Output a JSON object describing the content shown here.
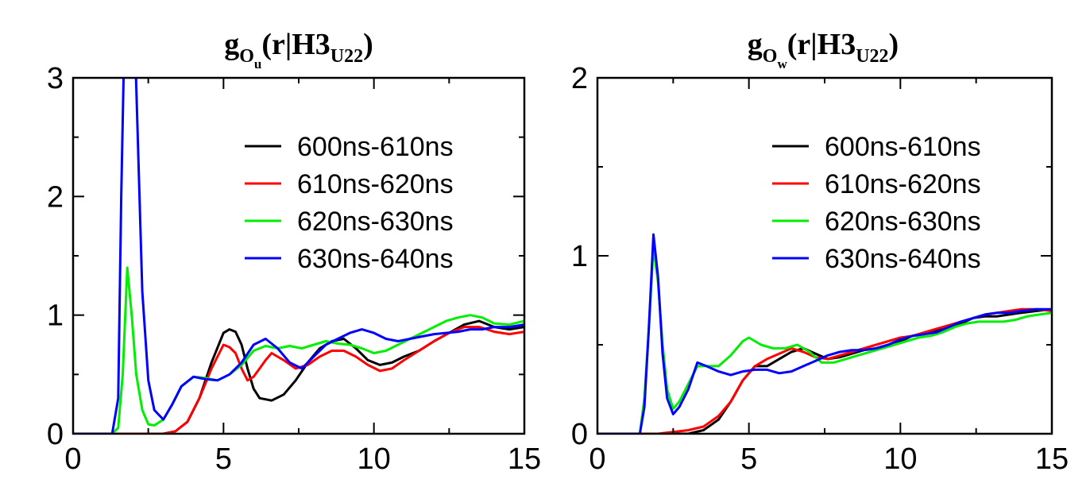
{
  "chart_data": [
    {
      "type": "line",
      "title": {
        "main": "g",
        "sub1": "O",
        "sub2": "u",
        "paren_open": "(r|H3",
        "sub3": "U22",
        "paren_close": ")"
      },
      "xlabel": "",
      "ylabel": "",
      "xlim": [
        0,
        15
      ],
      "ylim": [
        0,
        3
      ],
      "xticks": [
        0,
        5,
        10,
        15
      ],
      "yticks": [
        0,
        1,
        2,
        3
      ],
      "legend_position": "top-right",
      "series": [
        {
          "name": "600ns-610ns",
          "color": "#000000",
          "x": [
            0,
            1.4,
            2.0,
            3.0,
            3.4,
            3.8,
            4.2,
            4.6,
            5.0,
            5.2,
            5.4,
            5.6,
            5.8,
            6.0,
            6.2,
            6.6,
            7.0,
            7.4,
            7.8,
            8.2,
            8.6,
            9.0,
            9.4,
            9.8,
            10.2,
            10.6,
            11.0,
            11.5,
            12.0,
            12.5,
            13.0,
            13.5,
            14.0,
            14.5,
            15.0
          ],
          "y": [
            0,
            0,
            0,
            0,
            0.02,
            0.1,
            0.3,
            0.6,
            0.85,
            0.88,
            0.86,
            0.75,
            0.55,
            0.38,
            0.3,
            0.28,
            0.33,
            0.45,
            0.6,
            0.72,
            0.78,
            0.8,
            0.72,
            0.62,
            0.58,
            0.6,
            0.65,
            0.7,
            0.78,
            0.85,
            0.92,
            0.95,
            0.9,
            0.88,
            0.9
          ]
        },
        {
          "name": "610ns-620ns",
          "color": "#ff0000",
          "x": [
            0,
            1.4,
            2.0,
            3.0,
            3.4,
            3.8,
            4.2,
            4.6,
            5.0,
            5.2,
            5.4,
            5.6,
            5.8,
            6.0,
            6.2,
            6.4,
            6.6,
            7.0,
            7.4,
            7.8,
            8.2,
            8.6,
            9.0,
            9.4,
            9.8,
            10.2,
            10.6,
            11.0,
            11.5,
            12.0,
            12.5,
            13.0,
            13.5,
            14.0,
            14.5,
            15.0
          ],
          "y": [
            0,
            0,
            0,
            0,
            0.02,
            0.1,
            0.3,
            0.55,
            0.75,
            0.73,
            0.68,
            0.55,
            0.45,
            0.48,
            0.55,
            0.62,
            0.68,
            0.62,
            0.55,
            0.58,
            0.65,
            0.7,
            0.7,
            0.65,
            0.58,
            0.53,
            0.55,
            0.62,
            0.7,
            0.78,
            0.85,
            0.9,
            0.9,
            0.86,
            0.84,
            0.86
          ]
        },
        {
          "name": "620ns-630ns",
          "color": "#00ee00",
          "x": [
            0,
            1.3,
            1.5,
            1.65,
            1.8,
            1.95,
            2.1,
            2.3,
            2.5,
            2.7,
            3.0,
            3.3,
            3.6,
            4.0,
            4.4,
            4.8,
            5.2,
            5.6,
            6.0,
            6.4,
            6.8,
            7.2,
            7.6,
            8.0,
            8.4,
            8.8,
            9.2,
            9.6,
            10.0,
            10.4,
            10.8,
            11.2,
            11.6,
            12.0,
            12.4,
            12.8,
            13.2,
            13.6,
            14.0,
            14.5,
            15.0
          ],
          "y": [
            0,
            0,
            0.05,
            0.5,
            1.4,
            1.0,
            0.5,
            0.2,
            0.08,
            0.07,
            0.12,
            0.25,
            0.4,
            0.48,
            0.47,
            0.45,
            0.5,
            0.58,
            0.7,
            0.74,
            0.72,
            0.74,
            0.72,
            0.75,
            0.78,
            0.76,
            0.75,
            0.72,
            0.68,
            0.7,
            0.75,
            0.8,
            0.85,
            0.9,
            0.95,
            0.98,
            1.0,
            0.98,
            0.93,
            0.92,
            0.95
          ]
        },
        {
          "name": "630ns-640ns",
          "color": "#0000ff",
          "x": [
            0,
            1.3,
            1.5,
            1.6,
            1.7,
            1.85,
            2.0,
            2.15,
            2.3,
            2.5,
            2.7,
            3.0,
            3.3,
            3.6,
            4.0,
            4.4,
            4.8,
            5.2,
            5.6,
            6.0,
            6.4,
            6.8,
            7.2,
            7.6,
            8.0,
            8.4,
            8.8,
            9.2,
            9.6,
            10.0,
            10.4,
            10.8,
            11.2,
            11.6,
            12.0,
            12.4,
            12.8,
            13.2,
            13.6,
            14.0,
            14.5,
            15.0
          ],
          "y": [
            0,
            0,
            0.3,
            2.0,
            3.3,
            4.0,
            3.8,
            2.5,
            1.2,
            0.45,
            0.2,
            0.12,
            0.25,
            0.4,
            0.48,
            0.46,
            0.45,
            0.5,
            0.6,
            0.75,
            0.8,
            0.72,
            0.6,
            0.55,
            0.65,
            0.75,
            0.8,
            0.85,
            0.88,
            0.85,
            0.8,
            0.78,
            0.8,
            0.82,
            0.84,
            0.85,
            0.86,
            0.88,
            0.88,
            0.9,
            0.9,
            0.92
          ]
        }
      ]
    },
    {
      "type": "line",
      "title": {
        "main": "g",
        "sub1": "O",
        "sub2": "w",
        "paren_open": "(r|H3",
        "sub3": "U22",
        "paren_close": ")"
      },
      "xlabel": "",
      "ylabel": "",
      "xlim": [
        0,
        15
      ],
      "ylim": [
        0,
        2
      ],
      "xticks": [
        0,
        5,
        10,
        15
      ],
      "yticks": [
        0,
        1,
        2
      ],
      "legend_position": "top-right",
      "series": [
        {
          "name": "600ns-610ns",
          "color": "#000000",
          "x": [
            0,
            2.0,
            3.0,
            3.5,
            4.0,
            4.4,
            4.8,
            5.2,
            5.6,
            6.0,
            6.4,
            6.8,
            7.2,
            7.6,
            8.0,
            8.4,
            8.8,
            9.2,
            9.6,
            10.0,
            10.4,
            10.8,
            11.2,
            11.6,
            12.0,
            12.4,
            12.8,
            13.2,
            13.6,
            14.0,
            14.5,
            15.0
          ],
          "y": [
            0,
            0,
            0,
            0.02,
            0.08,
            0.18,
            0.3,
            0.38,
            0.38,
            0.42,
            0.46,
            0.48,
            0.45,
            0.42,
            0.43,
            0.45,
            0.47,
            0.48,
            0.5,
            0.52,
            0.55,
            0.56,
            0.58,
            0.6,
            0.62,
            0.65,
            0.66,
            0.66,
            0.67,
            0.68,
            0.69,
            0.7
          ]
        },
        {
          "name": "610ns-620ns",
          "color": "#ff0000",
          "x": [
            0,
            1.6,
            2.0,
            2.5,
            3.0,
            3.5,
            4.0,
            4.4,
            4.8,
            5.2,
            5.6,
            6.0,
            6.4,
            6.8,
            7.2,
            7.6,
            8.0,
            8.4,
            8.8,
            9.2,
            9.6,
            10.0,
            10.4,
            10.8,
            11.2,
            11.6,
            12.0,
            12.4,
            12.8,
            13.2,
            13.6,
            14.0,
            14.5,
            15.0
          ],
          "y": [
            0,
            0,
            0,
            0.01,
            0.02,
            0.04,
            0.1,
            0.18,
            0.3,
            0.38,
            0.42,
            0.45,
            0.48,
            0.46,
            0.43,
            0.42,
            0.44,
            0.46,
            0.48,
            0.5,
            0.52,
            0.54,
            0.55,
            0.57,
            0.59,
            0.61,
            0.63,
            0.65,
            0.67,
            0.68,
            0.69,
            0.7,
            0.7,
            0.69
          ]
        },
        {
          "name": "620ns-630ns",
          "color": "#00ee00",
          "x": [
            0,
            1.4,
            1.55,
            1.7,
            1.85,
            2.0,
            2.15,
            2.3,
            2.5,
            2.7,
            3.0,
            3.3,
            3.6,
            4.0,
            4.4,
            4.8,
            5.0,
            5.4,
            5.8,
            6.2,
            6.6,
            7.0,
            7.4,
            7.8,
            8.2,
            8.6,
            9.0,
            9.4,
            9.8,
            10.2,
            10.6,
            11.0,
            11.4,
            11.8,
            12.2,
            12.6,
            13.0,
            13.4,
            13.8,
            14.2,
            14.6,
            15.0
          ],
          "y": [
            0,
            0,
            0.2,
            0.6,
            1.05,
            0.85,
            0.5,
            0.25,
            0.14,
            0.18,
            0.28,
            0.38,
            0.38,
            0.38,
            0.44,
            0.52,
            0.54,
            0.5,
            0.48,
            0.48,
            0.5,
            0.46,
            0.4,
            0.4,
            0.42,
            0.44,
            0.46,
            0.48,
            0.5,
            0.52,
            0.54,
            0.55,
            0.57,
            0.6,
            0.62,
            0.63,
            0.63,
            0.63,
            0.64,
            0.66,
            0.67,
            0.68
          ]
        },
        {
          "name": "630ns-640ns",
          "color": "#0000ff",
          "x": [
            0,
            1.4,
            1.55,
            1.7,
            1.85,
            2.0,
            2.15,
            2.3,
            2.5,
            2.7,
            3.0,
            3.3,
            3.6,
            4.0,
            4.4,
            4.8,
            5.2,
            5.6,
            6.0,
            6.4,
            6.8,
            7.2,
            7.6,
            8.0,
            8.4,
            8.8,
            9.2,
            9.6,
            10.0,
            10.4,
            10.8,
            11.2,
            11.6,
            12.0,
            12.4,
            12.8,
            13.2,
            13.6,
            14.0,
            14.5,
            15.0
          ],
          "y": [
            0,
            0,
            0.15,
            0.6,
            1.12,
            0.88,
            0.45,
            0.2,
            0.11,
            0.15,
            0.25,
            0.4,
            0.38,
            0.35,
            0.33,
            0.35,
            0.36,
            0.36,
            0.34,
            0.35,
            0.38,
            0.41,
            0.44,
            0.46,
            0.47,
            0.47,
            0.48,
            0.5,
            0.53,
            0.55,
            0.56,
            0.57,
            0.6,
            0.63,
            0.65,
            0.67,
            0.68,
            0.68,
            0.69,
            0.7,
            0.7
          ]
        }
      ]
    }
  ]
}
